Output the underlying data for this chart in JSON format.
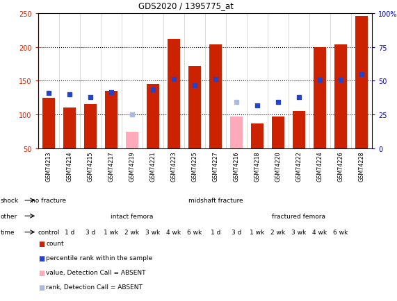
{
  "title": "GDS2020 / 1395775_at",
  "samples": [
    "GSM74213",
    "GSM74214",
    "GSM74215",
    "GSM74217",
    "GSM74219",
    "GSM74221",
    "GSM74223",
    "GSM74225",
    "GSM74227",
    "GSM74216",
    "GSM74218",
    "GSM74220",
    "GSM74222",
    "GSM74224",
    "GSM74226",
    "GSM74228"
  ],
  "bar_heights": [
    125,
    111,
    116,
    135,
    null,
    145,
    212,
    172,
    204,
    null,
    87,
    97,
    106,
    200,
    204,
    245
  ],
  "absent_bar_heights": [
    null,
    null,
    null,
    null,
    75,
    null,
    null,
    null,
    null,
    97,
    null,
    null,
    null,
    null,
    null,
    null
  ],
  "rank_dots": [
    132,
    130,
    126,
    133,
    null,
    137,
    153,
    143,
    152,
    null,
    114,
    119,
    126,
    151,
    151,
    160
  ],
  "absent_rank_dots": [
    null,
    null,
    null,
    null,
    100,
    null,
    null,
    null,
    null,
    119,
    null,
    null,
    null,
    null,
    null,
    null
  ],
  "ylim_left": [
    50,
    250
  ],
  "ylim_right": [
    0,
    100
  ],
  "yticks_left": [
    50,
    100,
    150,
    200,
    250
  ],
  "yticks_right": [
    0,
    25,
    50,
    75,
    100
  ],
  "ytick_labels_left": [
    "50",
    "100",
    "150",
    "200",
    "250"
  ],
  "ytick_labels_right": [
    "0",
    "25",
    "50",
    "75",
    "100%"
  ],
  "bar_color": "#cc2200",
  "absent_bar_color": "#ffaabb",
  "rank_dot_color": "#2244cc",
  "absent_rank_color": "#aabbdd",
  "shock_no_fracture_color": "#99dd77",
  "shock_midshaft_color": "#66cc33",
  "other_intact_color": "#bbaaee",
  "other_fractured_color": "#8866cc",
  "time_colors": [
    "#ffeaea",
    "#ffdddd",
    "#ffcccc",
    "#ffbbbb",
    "#ffaaaa",
    "#ff9999",
    "#ff8888",
    "#cc5555",
    "#ffdddd",
    "#ffcccc",
    "#ffbbbb",
    "#ffaaaa",
    "#ff9999",
    "#ff8888",
    "#cc5555"
  ],
  "time_labels": [
    "control",
    "1 d",
    "3 d",
    "1 wk",
    "2 wk",
    "3 wk",
    "4 wk",
    "6 wk",
    "1 d",
    "3 d",
    "1 wk",
    "2 wk",
    "3 wk",
    "4 wk",
    "6 wk"
  ],
  "legend_items": [
    {
      "color": "#cc2200",
      "label": "count"
    },
    {
      "color": "#2244cc",
      "label": "percentile rank within the sample"
    },
    {
      "color": "#ffaabb",
      "label": "value, Detection Call = ABSENT"
    },
    {
      "color": "#aabbdd",
      "label": "rank, Detection Call = ABSENT"
    }
  ]
}
